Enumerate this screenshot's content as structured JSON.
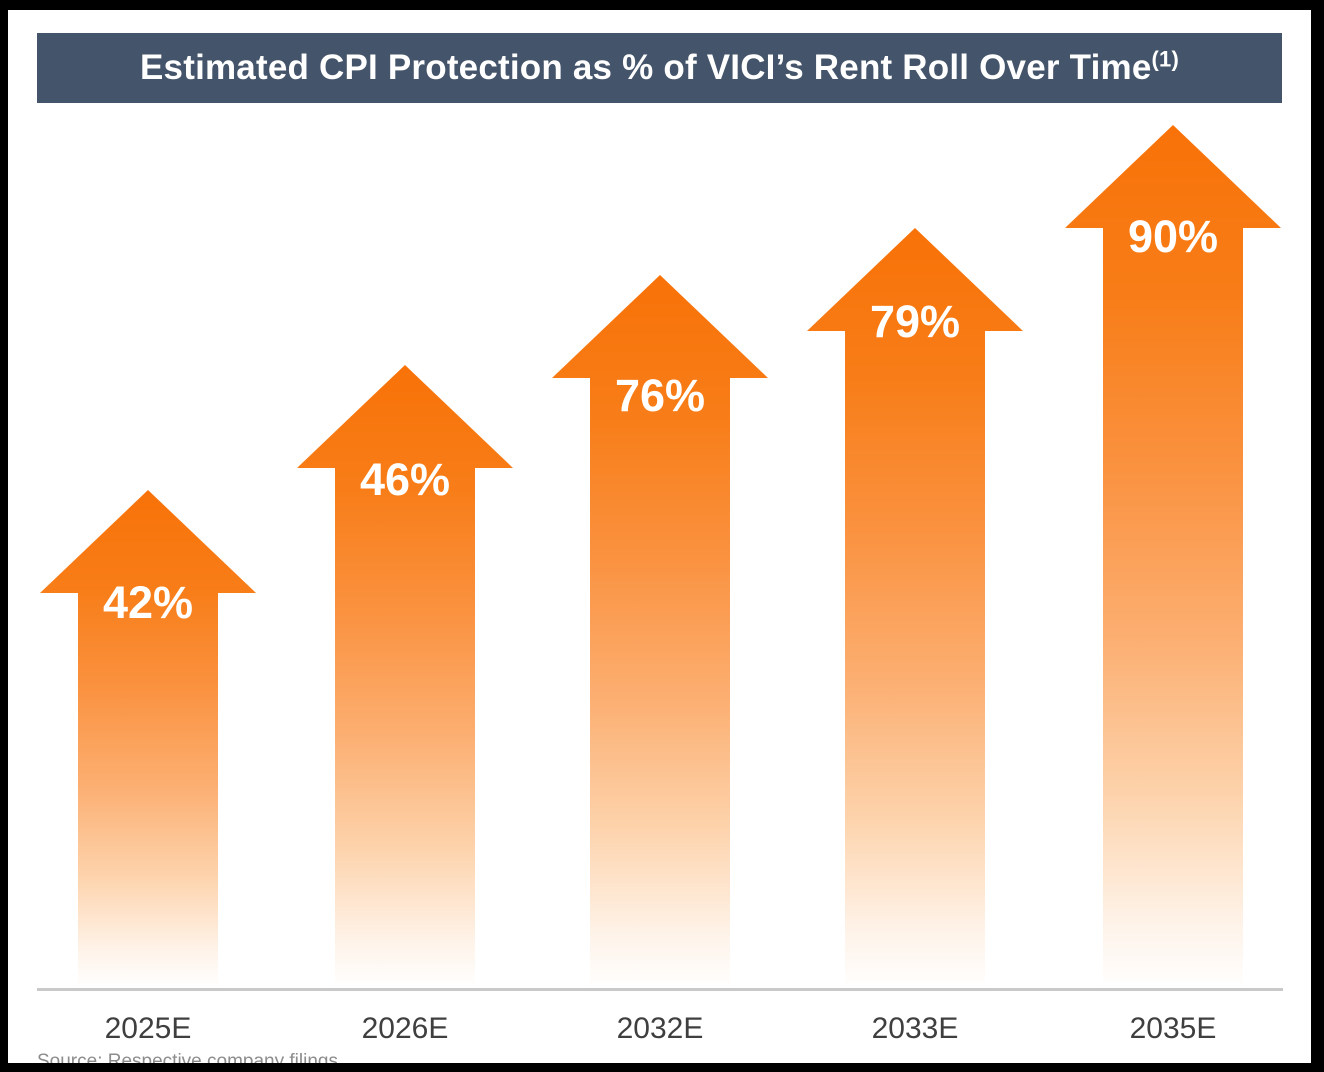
{
  "header": {
    "title": "Estimated CPI Protection as % of VICI’s Rent Roll Over Time",
    "footnote_marker": "(1)"
  },
  "source_note": "Source: Respective company filings",
  "colors": {
    "frame": "#000000",
    "canvas_bg": "#FFFFFF",
    "header_bg": "#44546A",
    "title_text": "#FFFFFF",
    "arrow_orange_top": "#F87208",
    "arrow_fade_bottom": "#FFFFFF",
    "value_label_text": "#FFFFFF",
    "axis_line": "#C9C9C9",
    "tick_label": "#3F3F3F",
    "source_text": "#8C8C8C"
  },
  "chart_data": {
    "type": "bar",
    "style": "upward arrow pictogram bars with vertical orange-to-white fade",
    "title": "Estimated CPI Protection as % of VICI’s Rent Roll Over Time(1)",
    "xlabel": "",
    "ylabel": "",
    "unit": "%",
    "ylim": [
      0,
      100
    ],
    "grid": false,
    "legend": false,
    "bar_color": "#F87208",
    "categories": [
      "2025E",
      "2026E",
      "2032E",
      "2033E",
      "2035E"
    ],
    "values": [
      42,
      46,
      76,
      79,
      90
    ],
    "value_labels": [
      "42%",
      "46%",
      "76%",
      "79%",
      "90%"
    ],
    "points": [
      {
        "category": "2025E",
        "value": 42,
        "label": "42%"
      },
      {
        "category": "2026E",
        "value": 46,
        "label": "46%"
      },
      {
        "category": "2032E",
        "value": 76,
        "label": "76%"
      },
      {
        "category": "2033E",
        "value": 79,
        "label": "79%"
      },
      {
        "category": "2035E",
        "value": 90,
        "label": "90%"
      }
    ]
  }
}
